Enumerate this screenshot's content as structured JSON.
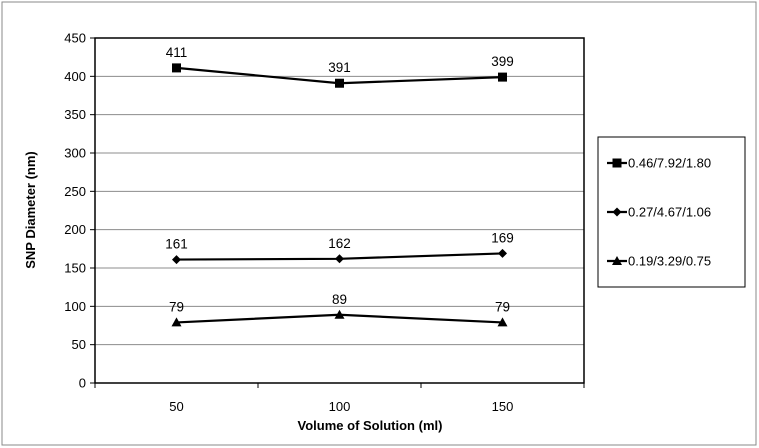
{
  "chart_data": {
    "type": "line",
    "categories": [
      "50",
      "100",
      "150"
    ],
    "xlabel": "Volume of Solution (ml)",
    "ylabel": "SNP Diameter (nm)",
    "ylim": [
      0,
      450
    ],
    "yticks": [
      0,
      50,
      100,
      150,
      200,
      250,
      300,
      350,
      400,
      450
    ],
    "grid": true,
    "legend_position": "right",
    "series": [
      {
        "name": "0.46/7.92/1.80",
        "marker": "square",
        "values": [
          411,
          391,
          399
        ],
        "labels": [
          "411",
          "391",
          "399"
        ],
        "color": "#000000"
      },
      {
        "name": "0.27/4.67/1.06",
        "marker": "diamond",
        "values": [
          161,
          162,
          169
        ],
        "labels": [
          "161",
          "162",
          "169"
        ],
        "color": "#000000"
      },
      {
        "name": "0.19/3.29/0.75",
        "marker": "triangle",
        "values": [
          79,
          89,
          79
        ],
        "labels": [
          "79",
          "89",
          "79"
        ],
        "color": "#000000"
      }
    ]
  }
}
